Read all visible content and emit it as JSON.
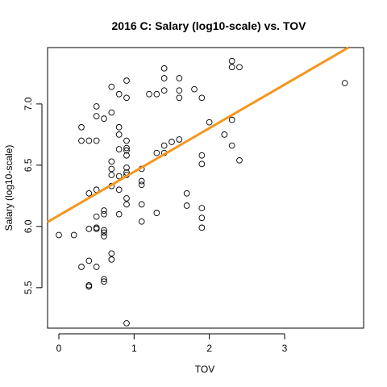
{
  "chart_data": {
    "type": "scatter",
    "title": "2016 C: Salary (log10-scale) vs. TOV",
    "xlabel": "TOV",
    "ylabel": "Salary (log10-scale)",
    "xlim": [
      -0.15,
      4.05
    ],
    "ylim": [
      5.17,
      7.46
    ],
    "x_ticks": [
      0,
      1,
      2,
      3
    ],
    "y_ticks": [
      5.5,
      6.0,
      6.5,
      7.0
    ],
    "x_tick_labels": [
      "0",
      "1",
      "2",
      "3"
    ],
    "y_tick_labels": [
      "5.5",
      "6.0",
      "6.5",
      "7.0"
    ],
    "grid": false,
    "points": [
      {
        "x": 0.0,
        "y": 5.93
      },
      {
        "x": 0.2,
        "y": 5.93
      },
      {
        "x": 0.3,
        "y": 6.81
      },
      {
        "x": 0.3,
        "y": 6.7
      },
      {
        "x": 0.3,
        "y": 5.67
      },
      {
        "x": 0.4,
        "y": 6.7
      },
      {
        "x": 0.4,
        "y": 6.27
      },
      {
        "x": 0.4,
        "y": 5.98
      },
      {
        "x": 0.4,
        "y": 5.72
      },
      {
        "x": 0.4,
        "y": 5.52
      },
      {
        "x": 0.4,
        "y": 5.51
      },
      {
        "x": 0.5,
        "y": 6.98
      },
      {
        "x": 0.5,
        "y": 6.9
      },
      {
        "x": 0.5,
        "y": 6.7
      },
      {
        "x": 0.5,
        "y": 6.3
      },
      {
        "x": 0.5,
        "y": 6.08
      },
      {
        "x": 0.5,
        "y": 5.99
      },
      {
        "x": 0.5,
        "y": 5.98
      },
      {
        "x": 0.5,
        "y": 5.67
      },
      {
        "x": 0.6,
        "y": 6.88
      },
      {
        "x": 0.6,
        "y": 6.13
      },
      {
        "x": 0.6,
        "y": 6.1
      },
      {
        "x": 0.6,
        "y": 5.97
      },
      {
        "x": 0.6,
        "y": 5.95
      },
      {
        "x": 0.6,
        "y": 5.92
      },
      {
        "x": 0.6,
        "y": 5.57
      },
      {
        "x": 0.6,
        "y": 5.55
      },
      {
        "x": 0.7,
        "y": 7.14
      },
      {
        "x": 0.7,
        "y": 6.93
      },
      {
        "x": 0.7,
        "y": 6.53
      },
      {
        "x": 0.7,
        "y": 6.47
      },
      {
        "x": 0.7,
        "y": 6.42
      },
      {
        "x": 0.7,
        "y": 6.33
      },
      {
        "x": 0.7,
        "y": 5.78
      },
      {
        "x": 0.7,
        "y": 5.73
      },
      {
        "x": 0.8,
        "y": 7.08
      },
      {
        "x": 0.8,
        "y": 6.81
      },
      {
        "x": 0.8,
        "y": 6.75
      },
      {
        "x": 0.8,
        "y": 6.63
      },
      {
        "x": 0.8,
        "y": 6.41
      },
      {
        "x": 0.8,
        "y": 6.3
      },
      {
        "x": 0.8,
        "y": 6.1
      },
      {
        "x": 0.9,
        "y": 7.19
      },
      {
        "x": 0.9,
        "y": 7.05
      },
      {
        "x": 0.9,
        "y": 6.7
      },
      {
        "x": 0.9,
        "y": 6.64
      },
      {
        "x": 0.9,
        "y": 6.62
      },
      {
        "x": 0.9,
        "y": 6.58
      },
      {
        "x": 0.9,
        "y": 6.48
      },
      {
        "x": 0.9,
        "y": 6.44
      },
      {
        "x": 0.9,
        "y": 6.42
      },
      {
        "x": 0.9,
        "y": 6.23
      },
      {
        "x": 0.9,
        "y": 6.18
      },
      {
        "x": 0.9,
        "y": 5.21
      },
      {
        "x": 1.1,
        "y": 6.47
      },
      {
        "x": 1.1,
        "y": 6.37
      },
      {
        "x": 1.1,
        "y": 6.34
      },
      {
        "x": 1.1,
        "y": 6.18
      },
      {
        "x": 1.1,
        "y": 6.04
      },
      {
        "x": 1.2,
        "y": 7.08
      },
      {
        "x": 1.3,
        "y": 7.08
      },
      {
        "x": 1.3,
        "y": 6.6
      },
      {
        "x": 1.3,
        "y": 6.11
      },
      {
        "x": 1.4,
        "y": 7.29
      },
      {
        "x": 1.4,
        "y": 7.21
      },
      {
        "x": 1.4,
        "y": 7.11
      },
      {
        "x": 1.4,
        "y": 6.66
      },
      {
        "x": 1.4,
        "y": 6.6
      },
      {
        "x": 1.5,
        "y": 6.69
      },
      {
        "x": 1.6,
        "y": 7.21
      },
      {
        "x": 1.6,
        "y": 7.11
      },
      {
        "x": 1.6,
        "y": 7.05
      },
      {
        "x": 1.6,
        "y": 6.71
      },
      {
        "x": 1.7,
        "y": 6.27
      },
      {
        "x": 1.7,
        "y": 6.17
      },
      {
        "x": 1.8,
        "y": 7.12
      },
      {
        "x": 1.9,
        "y": 7.05
      },
      {
        "x": 1.9,
        "y": 6.58
      },
      {
        "x": 1.9,
        "y": 6.51
      },
      {
        "x": 1.9,
        "y": 6.15
      },
      {
        "x": 1.9,
        "y": 6.07
      },
      {
        "x": 1.9,
        "y": 5.99
      },
      {
        "x": 2.0,
        "y": 6.85
      },
      {
        "x": 2.2,
        "y": 6.75
      },
      {
        "x": 2.3,
        "y": 7.35
      },
      {
        "x": 2.3,
        "y": 7.3
      },
      {
        "x": 2.3,
        "y": 6.87
      },
      {
        "x": 2.3,
        "y": 6.66
      },
      {
        "x": 2.4,
        "y": 7.3
      },
      {
        "x": 2.4,
        "y": 6.54
      },
      {
        "x": 3.8,
        "y": 7.17
      }
    ],
    "regression_line": {
      "intercept": 6.09,
      "slope": 0.356,
      "color": "#f5961e"
    },
    "colors": {
      "point_stroke": "#000000",
      "regression": "#f5961e",
      "background": "#ffffff"
    }
  }
}
